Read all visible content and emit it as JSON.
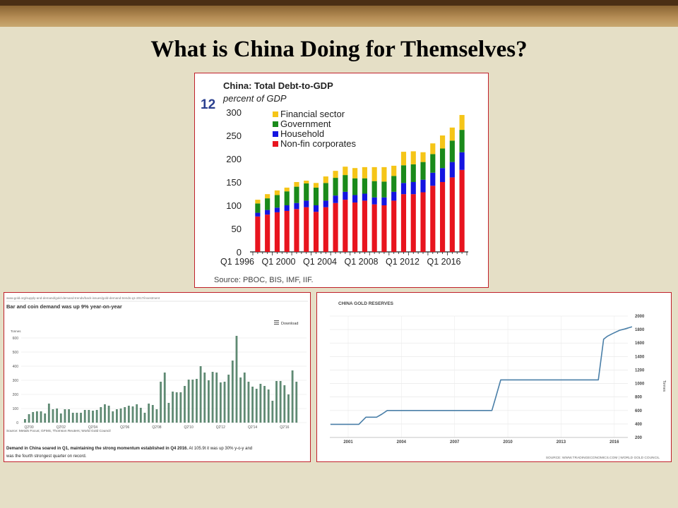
{
  "slide_title": "What is China Doing for Themselves?",
  "colors": {
    "financial": "#f5c518",
    "government": "#1a8a1a",
    "household": "#1414e0",
    "nonfin": "#e8141e",
    "bar_green": "#5f8a73",
    "line_blue": "#4a7fa8"
  },
  "debt_chart": {
    "title": "China: Total Debt-to-GDP",
    "subtitle": "percent of GDP",
    "figure_number": "12",
    "source": "Source: PBOC, BIS, IMF, IIF.",
    "y_ticks": [
      "0",
      "50",
      "100",
      "150",
      "200",
      "250",
      "300"
    ],
    "x_tick_labels": [
      "Q1 1996",
      "Q1 2000",
      "Q1 2004",
      "Q1 2008",
      "Q1 2012",
      "Q1 2016"
    ],
    "legend": [
      "Financial sector",
      "Government",
      "Household",
      "Non-fin corporates"
    ]
  },
  "gold_demand_chart": {
    "url": "www.gold.org/supply-and-demand/gold-demand-trends/back-issues/gold-demand-trends-q1-2017/investment",
    "heading": "Bar and coin demand was up 9% year-on-year",
    "download_label": "Download",
    "y_unit": "Tonnes",
    "y_ticks": [
      "0",
      "100",
      "200",
      "300",
      "400",
      "500",
      "600"
    ],
    "x_tick_labels": [
      "Q2'00",
      "Q2'02",
      "Q2'04",
      "Q2'06",
      "Q2'08",
      "Q2'10",
      "Q2'12",
      "Q2'14",
      "Q2'16"
    ],
    "source": "Source: Metals Focus; GFMS, Thomson Reuters; World Gold Council",
    "caption_bold": "Demand in China soared in Q1, maintaining the strong momentum established in Q4 2016.",
    "caption_rest": " At 105.9t it was up 30% y-o-y and",
    "caption_line2": "was the fourth strongest quarter on record."
  },
  "reserves_chart": {
    "title": "CHINA GOLD RESERVES",
    "y_ticks": [
      "2000",
      "1800",
      "1600",
      "1400",
      "1200",
      "1000",
      "800",
      "600",
      "400",
      "200"
    ],
    "y_unit": "Tonnes",
    "x_tick_labels": [
      "2001",
      "2004",
      "2007",
      "2010",
      "2013",
      "2016"
    ],
    "source": "SOURCE: WWW.TRADINGECONOMICS.COM | WORLD GOLD COUNCIL"
  },
  "chart_data": [
    {
      "type": "bar",
      "title": "China: Total Debt-to-GDP",
      "ylabel": "percent of GDP",
      "ylim": [
        0,
        300
      ],
      "x_start": "Q1 1996",
      "x_step": "2 quarters",
      "series": [
        {
          "name": "Non-fin corporates",
          "values": [
            76,
            80,
            85,
            88,
            92,
            96,
            86,
            96,
            105,
            112,
            106,
            110,
            102,
            100,
            110,
            124,
            124,
            128,
            142,
            150,
            160,
            176
          ]
        },
        {
          "name": "Household",
          "values": [
            8,
            10,
            10,
            12,
            13,
            14,
            14,
            14,
            16,
            17,
            16,
            15,
            15,
            17,
            19,
            24,
            26,
            27,
            28,
            30,
            33,
            38
          ]
        },
        {
          "name": "Government",
          "values": [
            20,
            25,
            27,
            30,
            35,
            37,
            38,
            38,
            38,
            36,
            36,
            33,
            35,
            34,
            34,
            38,
            38,
            38,
            40,
            42,
            46,
            48
          ]
        },
        {
          "name": "Financial sector",
          "values": [
            8,
            9,
            10,
            8,
            10,
            6,
            10,
            14,
            15,
            18,
            22,
            24,
            30,
            31,
            22,
            29,
            28,
            21,
            23,
            28,
            28,
            32
          ]
        }
      ],
      "legend_position": "top-left",
      "grid": false
    },
    {
      "type": "bar",
      "title": "Bar and coin demand was up 9% year-on-year",
      "ylabel": "Tonnes",
      "ylim": [
        0,
        600
      ],
      "x_start": "Q1'00",
      "x_step": "1 quarter",
      "series": [
        {
          "name": "",
          "values": [
            25,
            60,
            75,
            80,
            80,
            65,
            135,
            95,
            100,
            65,
            95,
            95,
            70,
            70,
            70,
            90,
            90,
            85,
            90,
            110,
            130,
            120,
            80,
            95,
            100,
            110,
            120,
            115,
            130,
            105,
            70,
            135,
            125,
            95,
            290,
            355,
            140,
            220,
            215,
            215,
            260,
            305,
            305,
            310,
            400,
            355,
            300,
            360,
            355,
            285,
            290,
            340,
            440,
            615,
            320,
            355,
            290,
            255,
            240,
            275,
            260,
            235,
            155,
            295,
            295,
            265,
            200,
            370,
            290
          ]
        }
      ],
      "grid": true
    },
    {
      "type": "line",
      "title": "CHINA GOLD RESERVES",
      "ylabel": "Tonnes",
      "ylim": [
        200,
        2000
      ],
      "x": [
        2000.0,
        2001.0,
        2001.6,
        2002.0,
        2002.6,
        2002.9,
        2003.2,
        2005.0,
        2008.0,
        2009.1,
        2009.3,
        2009.6,
        2010.0,
        2013.0,
        2015.1,
        2015.4,
        2015.6,
        2015.9,
        2016.3,
        2016.6,
        2017.0
      ],
      "series": [
        {
          "name": "",
          "values": [
            395,
            395,
            395,
            500,
            500,
            545,
            600,
            600,
            600,
            600,
            780,
            1054,
            1054,
            1054,
            1054,
            1658,
            1700,
            1740,
            1790,
            1810,
            1842
          ]
        }
      ],
      "grid": true
    }
  ]
}
